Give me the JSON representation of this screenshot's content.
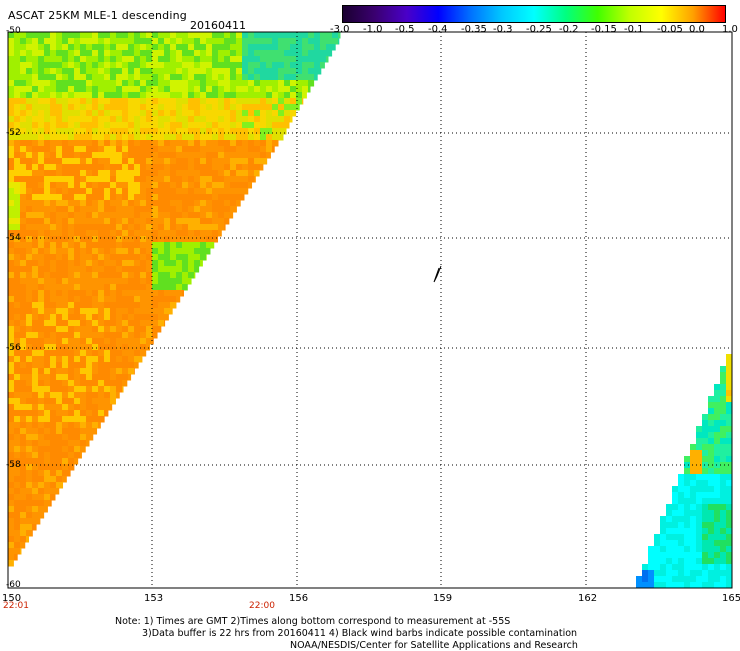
{
  "title": "ASCAT 25KM MLE-1 descending",
  "date": "20160411",
  "colorbar": {
    "labels": [
      "-3.0",
      "-1.0",
      "-0.5",
      "-0.4",
      "-0.35",
      "-0.3",
      "-0.25",
      "-0.2",
      "-0.15",
      "-0.1",
      "-0.05",
      "0.0",
      "1.0"
    ],
    "colors": [
      "#1a0030",
      "#3a0070",
      "#4a00c8",
      "#0000ff",
      "#0070ff",
      "#00c8ff",
      "#00ffff",
      "#00ff80",
      "#40ff00",
      "#c0ff00",
      "#ffff00",
      "#ffa000",
      "#ff0000"
    ]
  },
  "axes": {
    "lat_labels": [
      "-50",
      "-52",
      "-54",
      "-56",
      "-58",
      "-60"
    ],
    "lon_labels": [
      "150",
      "153",
      "156",
      "159",
      "162",
      "165"
    ],
    "time_labels": [
      "22:01",
      "22:00"
    ]
  },
  "note_lines": [
    "Note: 1) Times are GMT 2)Times along bottom correspond to measurement at -55S",
    "3)Data buffer is 22 hrs from 20160411 4) Black wind barbs indicate possible contamination",
    "NOAA/NESDIS/Center for Satellite Applications and Research"
  ]
}
